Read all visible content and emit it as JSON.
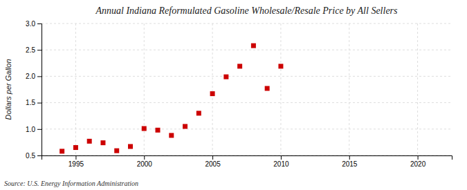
{
  "chart_data": {
    "type": "scatter",
    "title": "Annual Indiana Reformulated Gasoline Wholesale/Resale Price by All Sellers",
    "ylabel": "Dollars per Gallon",
    "source": "Source: U.S. Energy Information Administration",
    "x": [
      1994,
      1995,
      1996,
      1997,
      1998,
      1999,
      2000,
      2001,
      2002,
      2003,
      2004,
      2005,
      2006,
      2007,
      2008,
      2009,
      2010
    ],
    "values": [
      0.58,
      0.65,
      0.77,
      0.74,
      0.59,
      0.67,
      1.01,
      0.98,
      0.88,
      1.05,
      1.3,
      1.67,
      1.99,
      2.19,
      2.58,
      1.77,
      2.19
    ],
    "color": "#cc0000",
    "marker": "square",
    "xlim": [
      1992.5,
      2022.5
    ],
    "ylim": [
      0.5,
      3.0
    ],
    "xticks": [
      1995,
      2000,
      2005,
      2010,
      2015,
      2020
    ],
    "yticks": [
      0.5,
      {
        "value": 1.0,
        "label": "1.0"
      },
      1.5,
      {
        "value": 2.0,
        "label": "2.0"
      },
      2.5,
      {
        "value": 3.0,
        "label": "3.0"
      }
    ],
    "grid": true
  }
}
